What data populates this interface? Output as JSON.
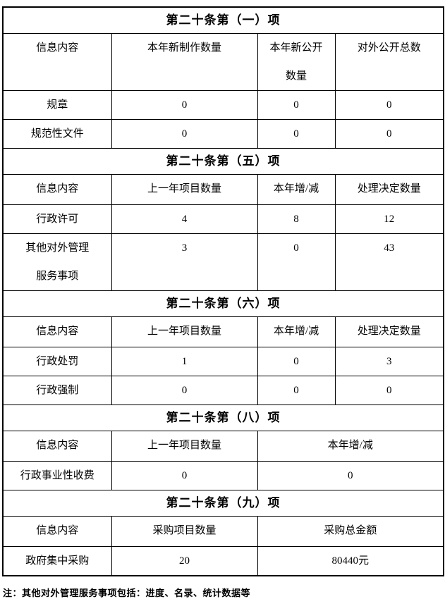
{
  "sections": [
    {
      "title": "第二十条第（一）项",
      "headers": [
        "信息内容",
        "本年新制作数量",
        "本年新公开\n数量",
        "对外公开总数"
      ],
      "rows": [
        [
          "规章",
          "0",
          "0",
          "0"
        ],
        [
          "规范性文件",
          "0",
          "0",
          "0"
        ]
      ]
    },
    {
      "title": "第二十条第（五）项",
      "headers": [
        "信息内容",
        "上一年项目数量",
        "本年增/减",
        "处理决定数量"
      ],
      "rows": [
        [
          "行政许可",
          "4",
          "8",
          "12"
        ],
        [
          "其他对外管理\n服务事项",
          "3",
          "0",
          "43"
        ]
      ]
    },
    {
      "title": "第二十条第（六）项",
      "headers": [
        "信息内容",
        "上一年项目数量",
        "本年增/减",
        "处理决定数量"
      ],
      "rows": [
        [
          "行政处罚",
          "1",
          "0",
          "3"
        ],
        [
          "行政强制",
          "0",
          "0",
          "0"
        ]
      ]
    },
    {
      "title": "第二十条第（八）项",
      "headers": [
        "信息内容",
        "上一年项目数量",
        "本年增/减"
      ],
      "rows": [
        [
          "行政事业性收费",
          "0",
          "0"
        ]
      ]
    },
    {
      "title": "第二十条第（九）项",
      "headers": [
        "信息内容",
        "采购项目数量",
        "采购总金额"
      ],
      "rows": [
        [
          "政府集中采购",
          "20",
          "80440元"
        ]
      ]
    }
  ],
  "note": "注：其他对外管理服务事项包括：进度、名录、统计数据等",
  "colors": {
    "text": "#000000",
    "border": "#000000",
    "background": "#ffffff"
  }
}
